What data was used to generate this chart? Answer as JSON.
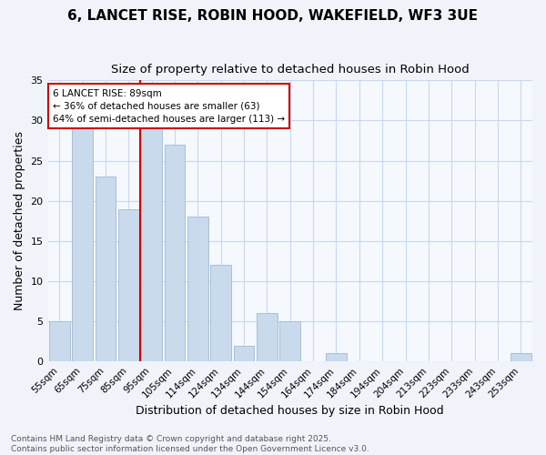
{
  "title1": "6, LANCET RISE, ROBIN HOOD, WAKEFIELD, WF3 3UE",
  "title2": "Size of property relative to detached houses in Robin Hood",
  "xlabel": "Distribution of detached houses by size in Robin Hood",
  "ylabel": "Number of detached properties",
  "categories": [
    "55sqm",
    "65sqm",
    "75sqm",
    "85sqm",
    "95sqm",
    "105sqm",
    "114sqm",
    "124sqm",
    "134sqm",
    "144sqm",
    "154sqm",
    "164sqm",
    "174sqm",
    "184sqm",
    "194sqm",
    "204sqm",
    "213sqm",
    "223sqm",
    "233sqm",
    "243sqm",
    "253sqm"
  ],
  "values": [
    5,
    29,
    23,
    19,
    29,
    27,
    18,
    12,
    2,
    6,
    5,
    0,
    1,
    0,
    0,
    0,
    0,
    0,
    0,
    0,
    1
  ],
  "bar_color": "#c8daec",
  "bar_edge_color": "#aabfd8",
  "vline_x": 3.5,
  "vline_color": "#cc0000",
  "annotation_text": "6 LANCET RISE: 89sqm\n← 36% of detached houses are smaller (63)\n64% of semi-detached houses are larger (113) →",
  "annotation_box_color": "#ffffff",
  "annotation_box_edge": "#cc0000",
  "ylim": [
    0,
    35
  ],
  "yticks": [
    0,
    5,
    10,
    15,
    20,
    25,
    30,
    35
  ],
  "footer": "Contains HM Land Registry data © Crown copyright and database right 2025.\nContains public sector information licensed under the Open Government Licence v3.0.",
  "bg_color": "#f0f4fa",
  "plot_bg_color": "#f5f8fd",
  "grid_color": "#c8d8ee",
  "title_fontsize": 11,
  "subtitle_fontsize": 9.5,
  "tick_fontsize": 7.5,
  "label_fontsize": 9,
  "footer_fontsize": 6.5
}
